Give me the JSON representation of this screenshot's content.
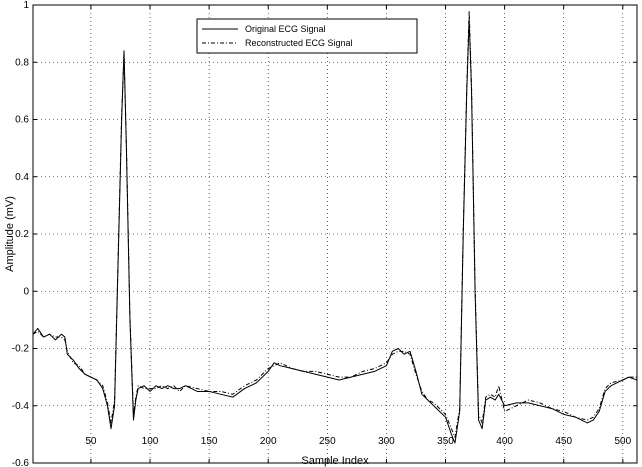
{
  "chart_data": {
    "type": "line",
    "title": "",
    "xlabel": "Sample Index",
    "ylabel": "Amplitude (mV)",
    "xlim": [
      1,
      512
    ],
    "ylim": [
      -0.6,
      1
    ],
    "x_ticks": [
      50,
      100,
      150,
      200,
      250,
      300,
      350,
      400,
      450,
      500
    ],
    "y_ticks": [
      -0.6,
      -0.4,
      -0.2,
      0,
      0.2,
      0.4,
      0.6,
      0.8,
      1
    ],
    "grid": true,
    "legend_position": "top-center",
    "series": [
      {
        "name": "Original ECG Signal",
        "style": "solid",
        "color": "#000000",
        "points": [
          [
            1,
            -0.15
          ],
          [
            5,
            -0.13
          ],
          [
            10,
            -0.16
          ],
          [
            15,
            -0.15
          ],
          [
            20,
            -0.17
          ],
          [
            25,
            -0.15
          ],
          [
            28,
            -0.16
          ],
          [
            30,
            -0.22
          ],
          [
            35,
            -0.24
          ],
          [
            40,
            -0.27
          ],
          [
            45,
            -0.29
          ],
          [
            50,
            -0.3
          ],
          [
            55,
            -0.31
          ],
          [
            60,
            -0.34
          ],
          [
            64,
            -0.4
          ],
          [
            67,
            -0.48
          ],
          [
            70,
            -0.4
          ],
          [
            73,
            0.1
          ],
          [
            76,
            0.6
          ],
          [
            78,
            0.84
          ],
          [
            80,
            0.5
          ],
          [
            83,
            -0.1
          ],
          [
            86,
            -0.45
          ],
          [
            88,
            -0.38
          ],
          [
            90,
            -0.34
          ],
          [
            95,
            -0.33
          ],
          [
            100,
            -0.35
          ],
          [
            105,
            -0.33
          ],
          [
            110,
            -0.34
          ],
          [
            115,
            -0.33
          ],
          [
            120,
            -0.34
          ],
          [
            125,
            -0.34
          ],
          [
            130,
            -0.33
          ],
          [
            140,
            -0.35
          ],
          [
            150,
            -0.35
          ],
          [
            160,
            -0.36
          ],
          [
            170,
            -0.37
          ],
          [
            180,
            -0.34
          ],
          [
            190,
            -0.32
          ],
          [
            200,
            -0.28
          ],
          [
            205,
            -0.25
          ],
          [
            210,
            -0.26
          ],
          [
            220,
            -0.27
          ],
          [
            230,
            -0.28
          ],
          [
            240,
            -0.29
          ],
          [
            250,
            -0.3
          ],
          [
            260,
            -0.31
          ],
          [
            270,
            -0.3
          ],
          [
            280,
            -0.29
          ],
          [
            290,
            -0.28
          ],
          [
            300,
            -0.26
          ],
          [
            305,
            -0.21
          ],
          [
            310,
            -0.2
          ],
          [
            315,
            -0.22
          ],
          [
            320,
            -0.21
          ],
          [
            325,
            -0.28
          ],
          [
            330,
            -0.36
          ],
          [
            335,
            -0.38
          ],
          [
            340,
            -0.4
          ],
          [
            345,
            -0.42
          ],
          [
            350,
            -0.44
          ],
          [
            355,
            -0.5
          ],
          [
            358,
            -0.53
          ],
          [
            362,
            -0.42
          ],
          [
            365,
            0.2
          ],
          [
            368,
            0.7
          ],
          [
            370,
            0.95
          ],
          [
            372,
            0.7
          ],
          [
            375,
            0.0
          ],
          [
            378,
            -0.45
          ],
          [
            381,
            -0.48
          ],
          [
            384,
            -0.38
          ],
          [
            388,
            -0.37
          ],
          [
            392,
            -0.38
          ],
          [
            395,
            -0.36
          ],
          [
            400,
            -0.4
          ],
          [
            410,
            -0.39
          ],
          [
            420,
            -0.39
          ],
          [
            430,
            -0.4
          ],
          [
            440,
            -0.41
          ],
          [
            450,
            -0.43
          ],
          [
            460,
            -0.44
          ],
          [
            470,
            -0.46
          ],
          [
            475,
            -0.45
          ],
          [
            480,
            -0.42
          ],
          [
            485,
            -0.35
          ],
          [
            490,
            -0.33
          ],
          [
            500,
            -0.31
          ],
          [
            505,
            -0.3
          ],
          [
            512,
            -0.31
          ]
        ]
      },
      {
        "name": "Reconstructed ECG Signal",
        "style": "dashdot",
        "color": "#000000",
        "points": [
          [
            1,
            -0.15
          ],
          [
            5,
            -0.14
          ],
          [
            10,
            -0.16
          ],
          [
            15,
            -0.15
          ],
          [
            20,
            -0.16
          ],
          [
            25,
            -0.16
          ],
          [
            28,
            -0.17
          ],
          [
            30,
            -0.21
          ],
          [
            35,
            -0.25
          ],
          [
            40,
            -0.26
          ],
          [
            45,
            -0.29
          ],
          [
            50,
            -0.3
          ],
          [
            55,
            -0.31
          ],
          [
            60,
            -0.33
          ],
          [
            64,
            -0.39
          ],
          [
            67,
            -0.46
          ],
          [
            70,
            -0.38
          ],
          [
            73,
            0.12
          ],
          [
            76,
            0.62
          ],
          [
            78,
            0.83
          ],
          [
            80,
            0.52
          ],
          [
            83,
            -0.08
          ],
          [
            86,
            -0.43
          ],
          [
            88,
            -0.37
          ],
          [
            90,
            -0.33
          ],
          [
            95,
            -0.34
          ],
          [
            100,
            -0.34
          ],
          [
            105,
            -0.34
          ],
          [
            110,
            -0.33
          ],
          [
            115,
            -0.34
          ],
          [
            120,
            -0.33
          ],
          [
            125,
            -0.35
          ],
          [
            130,
            -0.33
          ],
          [
            140,
            -0.34
          ],
          [
            150,
            -0.35
          ],
          [
            160,
            -0.35
          ],
          [
            170,
            -0.36
          ],
          [
            180,
            -0.33
          ],
          [
            190,
            -0.31
          ],
          [
            200,
            -0.27
          ],
          [
            205,
            -0.26
          ],
          [
            210,
            -0.25
          ],
          [
            220,
            -0.27
          ],
          [
            230,
            -0.28
          ],
          [
            240,
            -0.28
          ],
          [
            250,
            -0.29
          ],
          [
            260,
            -0.3
          ],
          [
            270,
            -0.3
          ],
          [
            280,
            -0.28
          ],
          [
            290,
            -0.27
          ],
          [
            300,
            -0.25
          ],
          [
            305,
            -0.22
          ],
          [
            310,
            -0.21
          ],
          [
            315,
            -0.21
          ],
          [
            320,
            -0.22
          ],
          [
            325,
            -0.29
          ],
          [
            330,
            -0.35
          ],
          [
            335,
            -0.38
          ],
          [
            340,
            -0.39
          ],
          [
            345,
            -0.41
          ],
          [
            350,
            -0.43
          ],
          [
            355,
            -0.48
          ],
          [
            358,
            -0.51
          ],
          [
            362,
            -0.41
          ],
          [
            365,
            0.22
          ],
          [
            368,
            0.72
          ],
          [
            370,
            0.98
          ],
          [
            372,
            0.72
          ],
          [
            375,
            0.02
          ],
          [
            378,
            -0.43
          ],
          [
            381,
            -0.46
          ],
          [
            384,
            -0.37
          ],
          [
            388,
            -0.36
          ],
          [
            392,
            -0.37
          ],
          [
            395,
            -0.33
          ],
          [
            400,
            -0.42
          ],
          [
            410,
            -0.4
          ],
          [
            420,
            -0.38
          ],
          [
            430,
            -0.39
          ],
          [
            440,
            -0.41
          ],
          [
            450,
            -0.42
          ],
          [
            460,
            -0.44
          ],
          [
            470,
            -0.45
          ],
          [
            475,
            -0.44
          ],
          [
            480,
            -0.41
          ],
          [
            485,
            -0.34
          ],
          [
            490,
            -0.32
          ],
          [
            500,
            -0.31
          ],
          [
            505,
            -0.3
          ],
          [
            512,
            -0.3
          ]
        ]
      }
    ]
  }
}
